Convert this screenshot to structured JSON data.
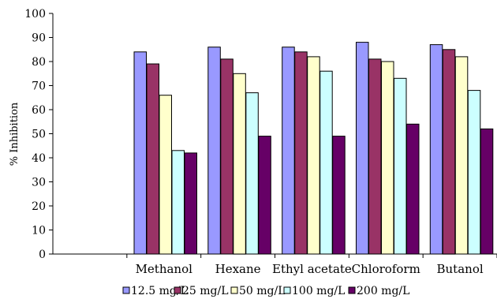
{
  "chart_data": {
    "type": "bar",
    "ylabel": "% Inhibition",
    "ylim": [
      0,
      100
    ],
    "yticks": [
      0,
      10,
      20,
      30,
      40,
      50,
      60,
      70,
      80,
      90,
      100
    ],
    "categories": [
      "",
      "Methanol",
      "Hexane",
      "Ethyl acetate",
      "Chloroform",
      "Butanol"
    ],
    "series": [
      {
        "name": "12.5 mg/L",
        "color": "#9999ff",
        "values": [
          null,
          84,
          86,
          86,
          88,
          87
        ]
      },
      {
        "name": "25 mg/L",
        "color": "#993366",
        "values": [
          null,
          79,
          81,
          84,
          81,
          85
        ]
      },
      {
        "name": "50 mg/L",
        "color": "#ffffcc",
        "values": [
          null,
          66,
          75,
          82,
          80,
          82
        ]
      },
      {
        "name": "100 mg/L",
        "color": "#ccffff",
        "values": [
          null,
          43,
          67,
          76,
          73,
          68
        ]
      },
      {
        "name": "200 mg/L",
        "color": "#660066",
        "values": [
          null,
          42,
          49,
          49,
          54,
          52
        ]
      }
    ],
    "legend_position": "bottom",
    "grid": false
  }
}
